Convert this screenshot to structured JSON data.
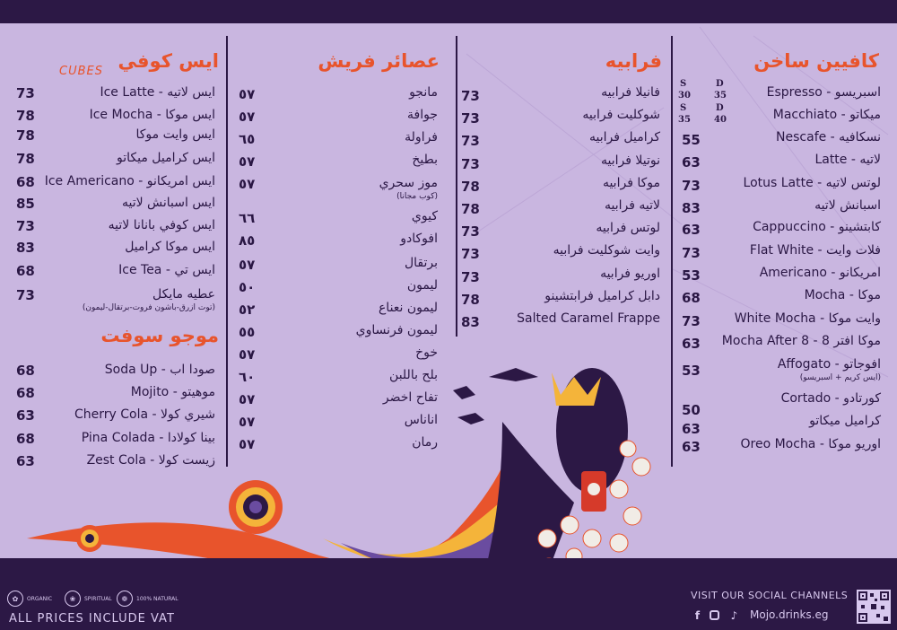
{
  "hot_caffeine": {
    "title": "كافيين ساخن",
    "size_labels": [
      {
        "s": "S",
        "d": "D"
      },
      {
        "s": "30",
        "d": "35"
      },
      {
        "s": "S",
        "d": "D"
      },
      {
        "s": "35",
        "d": "40"
      }
    ],
    "items": [
      {
        "name": "اسبريسو - Espresso",
        "price": ""
      },
      {
        "name": "ميكاتو - Macchiato",
        "price": ""
      },
      {
        "name": "نسكافيه - Nescafe",
        "price": "55"
      },
      {
        "name": "لاتيه - Latte",
        "price": "63"
      },
      {
        "name": "لوتس لاتيه - Lotus Latte",
        "price": "73"
      },
      {
        "name": "اسبانش لاتيه",
        "price": "83"
      },
      {
        "name": "كابتشينو - Cappuccino",
        "price": "63"
      },
      {
        "name": "فلات وايت - Flat White",
        "price": "73"
      },
      {
        "name": "امريكانو - Americano",
        "price": "53"
      },
      {
        "name": "موكا - Mocha",
        "price": "68"
      },
      {
        "name": "وايت موكا - White Mocha",
        "price": "73"
      },
      {
        "name": "موكا افتر 8 - Mocha After 8",
        "price": "63"
      },
      {
        "name": "افوجاتو - Affogato",
        "price": "53",
        "note": "(ايس كريم + اسبريسو)"
      },
      {
        "name": "كورتادو - Cortado",
        "price": "50"
      },
      {
        "name": "كراميل ميكاتو",
        "price": "63"
      },
      {
        "name": "اوريو موكا - Oreo Mocha",
        "price": "63"
      }
    ]
  },
  "frappe": {
    "title": "فرابيه",
    "items": [
      {
        "name": "فانيلا فرابيه",
        "price": "73"
      },
      {
        "name": "شوكليت فرابيه",
        "price": "73"
      },
      {
        "name": "كراميل فرابيه",
        "price": "73"
      },
      {
        "name": "نوتيلا فرابيه",
        "price": "73"
      },
      {
        "name": "موكا فرابيه",
        "price": "78"
      },
      {
        "name": "لاتيه فرابيه",
        "price": "78"
      },
      {
        "name": "لوتس فرابيه",
        "price": "73"
      },
      {
        "name": "وايت شوكليت فرابيه",
        "price": "73"
      },
      {
        "name": "اوريو فرابيه",
        "price": "73"
      },
      {
        "name": "دابل كراميل فرابتشينو",
        "price": "78"
      },
      {
        "name": "Salted Caramel Frappe",
        "price": "83"
      }
    ]
  },
  "fresh_juice": {
    "title": "عصائر فريش",
    "items": [
      {
        "name": "مانجو",
        "price": "٥٧"
      },
      {
        "name": "جوافة",
        "price": "٥٧"
      },
      {
        "name": "فراولة",
        "price": "٦٥"
      },
      {
        "name": "بطيخ",
        "price": "٥٧"
      },
      {
        "name": "موز سحري",
        "price": "٥٧",
        "note": "(كوب مجانا)"
      },
      {
        "name": "كيوي",
        "price": "٦٦"
      },
      {
        "name": "افوكادو",
        "price": "٨٥"
      },
      {
        "name": "برتقال",
        "price": "٥٧"
      },
      {
        "name": "ليمون",
        "price": "٥٠"
      },
      {
        "name": "ليمون نعناع",
        "price": "٥٢"
      },
      {
        "name": "ليمون فرنساوي",
        "price": "٥٥"
      },
      {
        "name": "خوخ",
        "price": "٥٧"
      },
      {
        "name": "بلح باللبن",
        "price": "٦٠"
      },
      {
        "name": "تفاح اخضر",
        "price": "٥٧"
      },
      {
        "name": "اناناس",
        "price": "٥٧"
      },
      {
        "name": "رمان",
        "price": "٥٧"
      }
    ]
  },
  "iced_coffee": {
    "title": "ايس كوفي",
    "cubes_label": "CUBES",
    "items": [
      {
        "name": "ايس لاتيه - Ice Latte",
        "price": "73"
      },
      {
        "name": "ايس موكا - Ice Mocha",
        "price": "78"
      },
      {
        "name": "ايس وايت موكا",
        "price": "78"
      },
      {
        "name": "ايس كراميل ميكاتو",
        "price": "78"
      },
      {
        "name": "ايس امريكانو - Ice Americano",
        "price": "68"
      },
      {
        "name": "ايس اسبانش لاتيه",
        "price": "85"
      },
      {
        "name": "ايس كوفي بانانا لاتيه",
        "price": "73"
      },
      {
        "name": "ايس موكا كراميل",
        "price": "83"
      },
      {
        "name": "ايس تي - Ice Tea",
        "price": "68"
      },
      {
        "name": "عطيه مايكل",
        "price": "73",
        "note": "(توت ازرق-باشون فروت-برتقال-ليمون)"
      }
    ]
  },
  "mojo_soft": {
    "title": "موجو سوفت",
    "items": [
      {
        "name": "صودا اب - Soda Up",
        "price": "68"
      },
      {
        "name": "موهيتو - Mojito",
        "price": "68"
      },
      {
        "name": "شيري كولا - Cherry Cola",
        "price": "63"
      },
      {
        "name": "بينا كولادا - Pina Colada",
        "price": "68"
      },
      {
        "name": "زيست كولا - Zest Cola",
        "price": "63"
      }
    ]
  },
  "footer": {
    "badges": [
      "ORGANIC",
      "SPIRITUAL",
      "100% NATURAL"
    ],
    "vat": "ALL PRICES INCLUDE VAT",
    "social_title": "VISIT OUR SOCIAL CHANNELS",
    "handle": "Mojo.drinks.eg",
    "social_icons": [
      "facebook-icon",
      "instagram-icon",
      "tiktok-icon"
    ]
  },
  "colors": {
    "background": "#c9b6e0",
    "dark": "#2c1845",
    "accent": "#e8542c"
  }
}
